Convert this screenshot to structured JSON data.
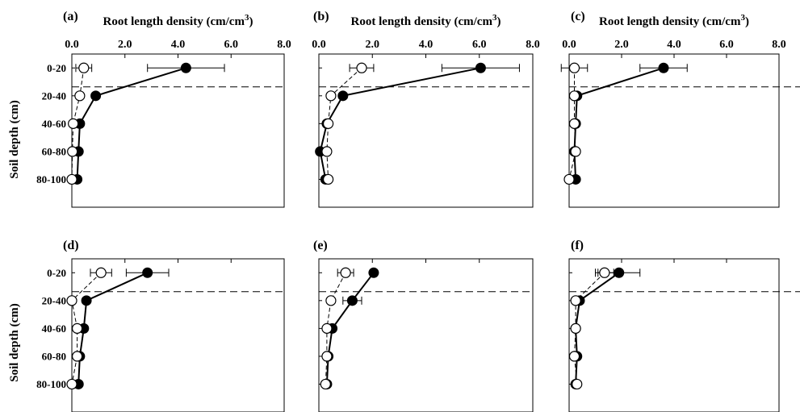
{
  "figure": {
    "ylabel": "Soil depth (cm)"
  },
  "chart_data": [
    {
      "type": "line",
      "panel_label": "(a)",
      "title": "Root length density (cm/cm3)",
      "xlim": [
        0,
        8
      ],
      "xticks": [
        "0.0",
        "2.0",
        "4.0",
        "6.0",
        "8.0"
      ],
      "show_tick_labels": true,
      "categories": [
        "0-20",
        "20-40",
        "40-60",
        "60-80",
        "80-100"
      ],
      "reference_line_between": [
        "0-20",
        "20-40"
      ],
      "series": [
        {
          "marker": "filled",
          "values": [
            4.3,
            0.9,
            0.3,
            0.25,
            0.2
          ],
          "error": [
            1.45,
            0,
            0,
            0,
            0
          ]
        },
        {
          "marker": "open",
          "values": [
            0.45,
            0.3,
            0.05,
            0.02,
            0.0
          ],
          "error": [
            0.3,
            0,
            0,
            0,
            0
          ]
        }
      ]
    },
    {
      "type": "line",
      "panel_label": "(b)",
      "title": "Root length density (cm/cm3)",
      "xlim": [
        0,
        8
      ],
      "xticks": [
        "0.0",
        "2.0",
        "4.0",
        "6.0",
        "8.0"
      ],
      "show_tick_labels": true,
      "categories": [
        "0-20",
        "20-40",
        "40-60",
        "60-80",
        "80-100"
      ],
      "reference_line_between": [
        "0-20",
        "20-40"
      ],
      "series": [
        {
          "marker": "filled",
          "values": [
            6.05,
            0.9,
            0.3,
            0.05,
            0.25
          ],
          "error": [
            1.45,
            0,
            0,
            0,
            0
          ]
        },
        {
          "marker": "open",
          "values": [
            1.6,
            0.45,
            0.35,
            0.3,
            0.35
          ],
          "error": [
            0.45,
            0,
            0,
            0,
            0
          ]
        }
      ]
    },
    {
      "type": "line",
      "panel_label": "(c)",
      "title": "Root length density (cm/cm3)",
      "xlim": [
        0,
        8
      ],
      "xticks": [
        "0.0",
        "2.0",
        "4.0",
        "6.0",
        "8.0"
      ],
      "show_tick_labels": true,
      "categories": [
        "0-20",
        "20-40",
        "40-60",
        "60-80",
        "80-100"
      ],
      "reference_line_between": [
        "0-20",
        "20-40"
      ],
      "series": [
        {
          "marker": "filled",
          "values": [
            3.6,
            0.3,
            0.25,
            0.2,
            0.25
          ],
          "error": [
            0.9,
            0,
            0,
            0,
            0
          ]
        },
        {
          "marker": "open",
          "values": [
            0.2,
            0.2,
            0.2,
            0.25,
            0.0
          ],
          "error": [
            0.5,
            0,
            0,
            0,
            0
          ]
        }
      ]
    },
    {
      "type": "line",
      "panel_label": "(d)",
      "title": "",
      "xlim": [
        0,
        8
      ],
      "xticks": [
        "0.0",
        "2.0",
        "4.0",
        "6.0",
        "8.0"
      ],
      "show_tick_labels": false,
      "categories": [
        "0-20",
        "20-40",
        "40-60",
        "60-80",
        "80-100"
      ],
      "reference_line_between": [
        "0-20",
        "20-40"
      ],
      "series": [
        {
          "marker": "filled",
          "values": [
            2.85,
            0.55,
            0.45,
            0.3,
            0.25
          ],
          "error": [
            0.8,
            0,
            0,
            0,
            0
          ]
        },
        {
          "marker": "open",
          "values": [
            1.1,
            0.0,
            0.2,
            0.2,
            0.0
          ],
          "error": [
            0.4,
            0,
            0,
            0,
            0
          ]
        }
      ]
    },
    {
      "type": "line",
      "panel_label": "(e)",
      "title": "",
      "xlim": [
        0,
        8
      ],
      "xticks": [
        "0.0",
        "2.0",
        "4.0",
        "6.0",
        "8.0"
      ],
      "show_tick_labels": false,
      "categories": [
        "0-20",
        "20-40",
        "40-60",
        "60-80",
        "80-100"
      ],
      "reference_line_between": [
        "0-20",
        "20-40"
      ],
      "series": [
        {
          "marker": "filled",
          "values": [
            2.05,
            1.25,
            0.5,
            0.35,
            0.3
          ],
          "error": [
            0,
            0.35,
            0,
            0,
            0
          ]
        },
        {
          "marker": "open",
          "values": [
            1.0,
            0.45,
            0.3,
            0.3,
            0.25
          ],
          "error": [
            0.3,
            0,
            0,
            0,
            0
          ]
        }
      ]
    },
    {
      "type": "line",
      "panel_label": "(f)",
      "title": "",
      "xlim": [
        0,
        8
      ],
      "xticks": [
        "0.0",
        "2.0",
        "4.0",
        "6.0",
        "8.0"
      ],
      "show_tick_labels": false,
      "categories": [
        "0-20",
        "20-40",
        "40-60",
        "60-80",
        "80-100"
      ],
      "reference_line_between": [
        "0-20",
        "20-40"
      ],
      "series": [
        {
          "marker": "filled",
          "values": [
            1.9,
            0.4,
            0.25,
            0.3,
            0.25
          ],
          "error": [
            0.8,
            0,
            0,
            0,
            0
          ]
        },
        {
          "marker": "open",
          "values": [
            1.35,
            0.25,
            0.25,
            0.2,
            0.3
          ],
          "error": [
            0.35,
            0,
            0,
            0,
            0
          ]
        }
      ]
    }
  ]
}
